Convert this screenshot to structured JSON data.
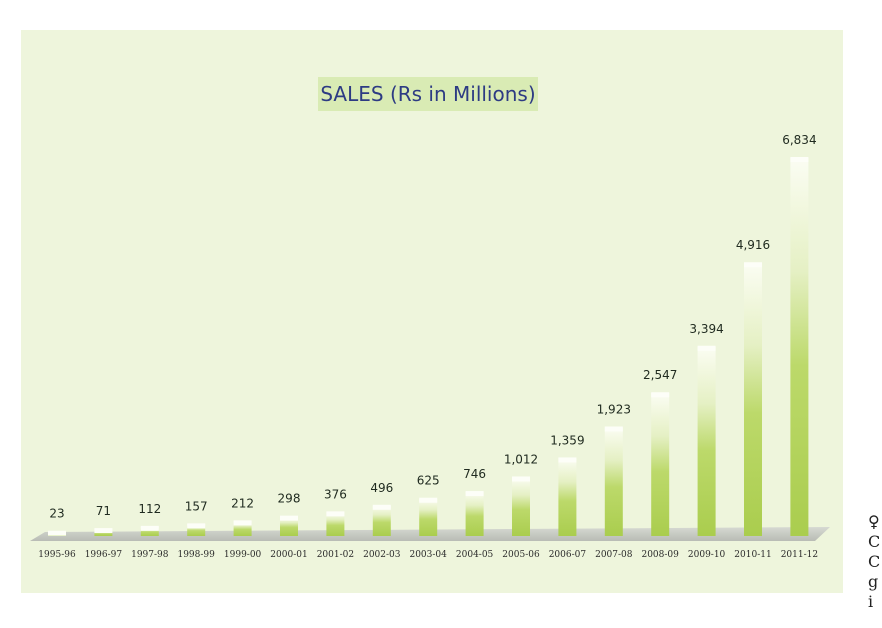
{
  "chart_data": {
    "type": "bar",
    "title": "SALES (Rs in Millions)",
    "categories": [
      "1995-96",
      "1996-97",
      "1997-98",
      "1998-99",
      "1999-00",
      "2000-01",
      "2001-02",
      "2002-03",
      "2003-04",
      "2004-05",
      "2005-06",
      "2006-07",
      "2007-08",
      "2008-09",
      "2009-10",
      "2010-11",
      "2011-12"
    ],
    "values": [
      23,
      71,
      112,
      157,
      212,
      298,
      376,
      496,
      625,
      746,
      1012,
      1359,
      1923,
      2547,
      3394,
      4916,
      6834
    ],
    "value_labels": [
      "23",
      "71",
      "112",
      "157",
      "212",
      "298",
      "376",
      "496",
      "625",
      "746",
      "1,012",
      "1,359",
      "1,923",
      "2,547",
      "3,394",
      "4,916",
      "6,834"
    ],
    "xlabel": "",
    "ylabel": "",
    "grid": false,
    "legend": "none",
    "colors": {
      "panel": "#eef5dc",
      "title_bg": "#d9ebb4",
      "title_text": "#2d3b83",
      "bar": "#b5d55a",
      "floor": "#c9ccc7"
    }
  },
  "edge_text": [
    "♀",
    "C",
    "C",
    "g",
    "i"
  ]
}
